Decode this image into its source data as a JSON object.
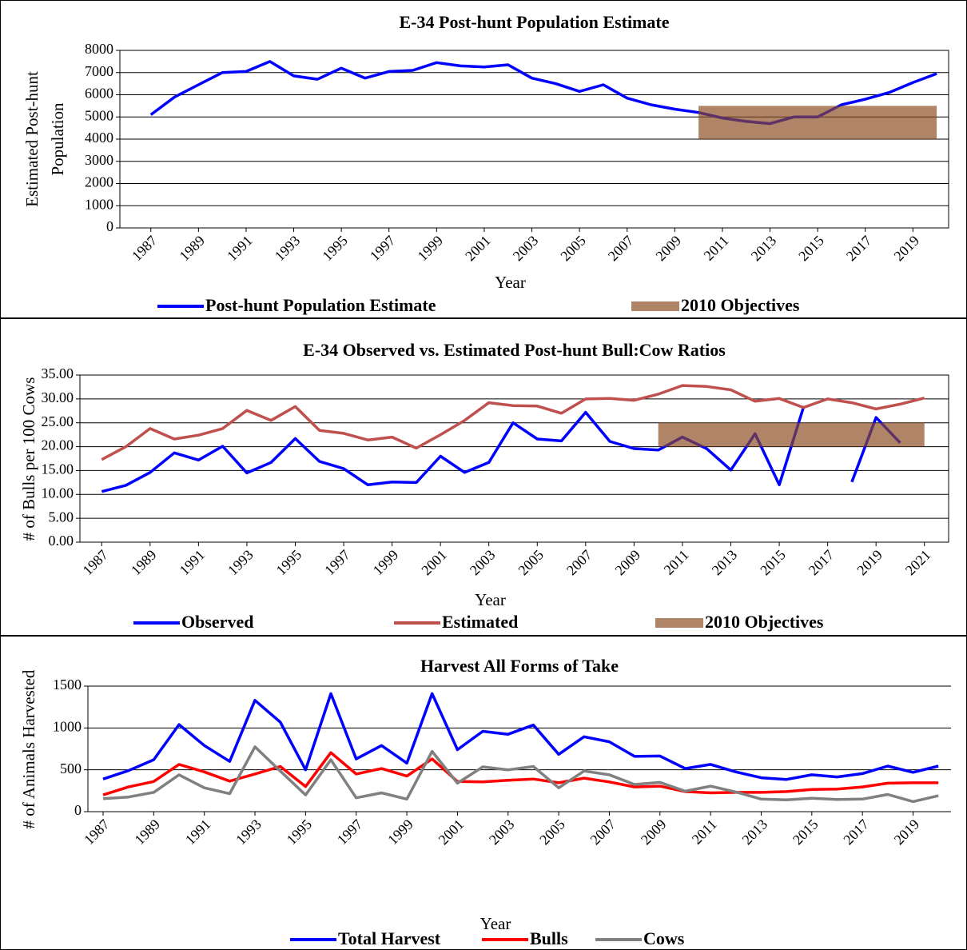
{
  "chart_data": [
    {
      "type": "line",
      "title": "E-34 Post-hunt Population Estimate",
      "xlabel": "Year",
      "ylabel": [
        "Estimated Post-hunt",
        "Population"
      ],
      "x": [
        1987,
        1988,
        1989,
        1990,
        1991,
        1992,
        1993,
        1994,
        1995,
        1996,
        1997,
        1998,
        1999,
        2000,
        2001,
        2002,
        2003,
        2004,
        2005,
        2006,
        2007,
        2008,
        2009,
        2010,
        2011,
        2012,
        2013,
        2014,
        2015,
        2016,
        2017,
        2018,
        2019,
        2020
      ],
      "xlim": [
        1985.7,
        2020.5
      ],
      "xticks": [
        1987,
        1989,
        1991,
        1993,
        1995,
        1997,
        1999,
        2001,
        2003,
        2005,
        2007,
        2009,
        2011,
        2013,
        2015,
        2017,
        2019
      ],
      "ylim": [
        0,
        8000
      ],
      "yticks": [
        0,
        1000,
        2000,
        3000,
        4000,
        5000,
        6000,
        7000,
        8000
      ],
      "grid": true,
      "series": [
        {
          "name": "Post-hunt Population Estimate",
          "color": "#0000ff",
          "values": [
            5100,
            5900,
            6450,
            7000,
            7050,
            7500,
            6850,
            6700,
            7200,
            6750,
            7050,
            7100,
            7450,
            7300,
            7250,
            7350,
            6750,
            6500,
            6150,
            6450,
            5850,
            5550,
            5350,
            5200,
            4950,
            4800,
            4700,
            5000,
            5000,
            5550,
            5800,
            6100,
            6550,
            6950
          ]
        }
      ],
      "band": {
        "name": "2010 Objectives",
        "color": "#8b4a1e",
        "x_range": [
          2010,
          2020
        ],
        "y_range": [
          4000,
          5500
        ]
      }
    },
    {
      "type": "line",
      "title": "E-34 Observed vs. Estimated Post-hunt Bull:Cow Ratios",
      "xlabel": "Year",
      "ylabel": [
        "# of Bulls per 100 Cows"
      ],
      "x": [
        1987,
        1988,
        1989,
        1990,
        1991,
        1992,
        1993,
        1994,
        1995,
        1996,
        1997,
        1998,
        1999,
        2000,
        2001,
        2002,
        2003,
        2004,
        2005,
        2006,
        2007,
        2008,
        2009,
        2010,
        2011,
        2012,
        2013,
        2014,
        2015,
        2016,
        2017,
        2018,
        2019,
        2020,
        2021
      ],
      "xlim": [
        1986.1,
        2022
      ],
      "xticks": [
        1987,
        1989,
        1991,
        1993,
        1995,
        1997,
        1999,
        2001,
        2003,
        2005,
        2007,
        2009,
        2011,
        2013,
        2015,
        2017,
        2019,
        2021
      ],
      "ylim": [
        0,
        35
      ],
      "yticks": [
        {
          "value": 0,
          "label": "0.00"
        },
        {
          "value": 5,
          "label": "5.00"
        },
        {
          "value": 10,
          "label": "10.00"
        },
        {
          "value": 15,
          "label": "15.00"
        },
        {
          "value": 20,
          "label": "20.00"
        },
        {
          "value": 25,
          "label": "25.00"
        },
        {
          "value": 30,
          "label": "30.00"
        },
        {
          "value": 35,
          "label": "35.00"
        }
      ],
      "grid": true,
      "series": [
        {
          "name": "Observed",
          "color": "#0000ff",
          "values": [
            10.6,
            11.9,
            14.6,
            18.7,
            17.2,
            20.1,
            14.5,
            16.7,
            21.7,
            16.9,
            15.4,
            12.0,
            12.6,
            12.5,
            18.0,
            14.6,
            16.7,
            25.0,
            21.6,
            21.2,
            27.2,
            21.1,
            19.6,
            19.3,
            22.0,
            19.6,
            15.1,
            22.7,
            12.0,
            28.2,
            null,
            12.6,
            26.1,
            20.8,
            null
          ]
        },
        {
          "name": "Estimated",
          "color": "#c0504d",
          "values": [
            17.3,
            20.0,
            23.8,
            21.6,
            22.4,
            23.8,
            27.6,
            25.5,
            28.4,
            23.4,
            22.8,
            21.4,
            22.0,
            19.7,
            22.5,
            25.5,
            29.2,
            28.6,
            28.5,
            27.0,
            30.0,
            30.1,
            29.7,
            31.0,
            32.8,
            32.6,
            31.9,
            29.5,
            30.1,
            28.2,
            30.0,
            29.2,
            27.9,
            28.9,
            30.2
          ]
        }
      ],
      "band": {
        "name": "2010 Objectives",
        "color": "#8b4a1e",
        "x_range": [
          2010,
          2021
        ],
        "y_range": [
          20,
          25
        ]
      }
    },
    {
      "type": "line",
      "title": "Harvest All Forms of Take",
      "xlabel": "Year",
      "ylabel": [
        "# of Animals Harvested"
      ],
      "x": [
        1987,
        1988,
        1989,
        1990,
        1991,
        1992,
        1993,
        1994,
        1995,
        1996,
        1997,
        1998,
        1999,
        2000,
        2001,
        2002,
        2003,
        2004,
        2005,
        2006,
        2007,
        2008,
        2009,
        2010,
        2011,
        2012,
        2013,
        2014,
        2015,
        2016,
        2017,
        2018,
        2019,
        2020
      ],
      "xlim": [
        1986.4,
        2020.5
      ],
      "xticks": [
        1987,
        1989,
        1991,
        1993,
        1995,
        1997,
        1999,
        2001,
        2003,
        2005,
        2007,
        2009,
        2011,
        2013,
        2015,
        2017,
        2019
      ],
      "ylim": [
        0,
        1500
      ],
      "yticks": [
        0,
        500,
        1000,
        1500
      ],
      "grid": true,
      "series": [
        {
          "name": "Total Harvest",
          "color": "#0000ff",
          "values": [
            390,
            490,
            620,
            1040,
            790,
            600,
            1330,
            1070,
            500,
            1410,
            630,
            790,
            580,
            1410,
            740,
            960,
            925,
            1035,
            685,
            895,
            835,
            660,
            665,
            515,
            565,
            475,
            405,
            385,
            440,
            415,
            455,
            545,
            470,
            545
          ]
        },
        {
          "name": "Bulls",
          "color": "#ff0000",
          "values": [
            200,
            295,
            360,
            565,
            475,
            365,
            450,
            540,
            300,
            705,
            450,
            515,
            425,
            630,
            360,
            355,
            375,
            390,
            345,
            400,
            355,
            295,
            305,
            240,
            225,
            230,
            230,
            240,
            265,
            270,
            295,
            340,
            345,
            345
          ]
        },
        {
          "name": "Cows",
          "color": "#808080",
          "values": [
            155,
            175,
            230,
            440,
            285,
            215,
            775,
            485,
            200,
            620,
            165,
            225,
            150,
            720,
            340,
            535,
            500,
            540,
            285,
            485,
            440,
            325,
            350,
            245,
            305,
            235,
            150,
            140,
            160,
            145,
            150,
            205,
            120,
            190
          ]
        }
      ]
    }
  ]
}
